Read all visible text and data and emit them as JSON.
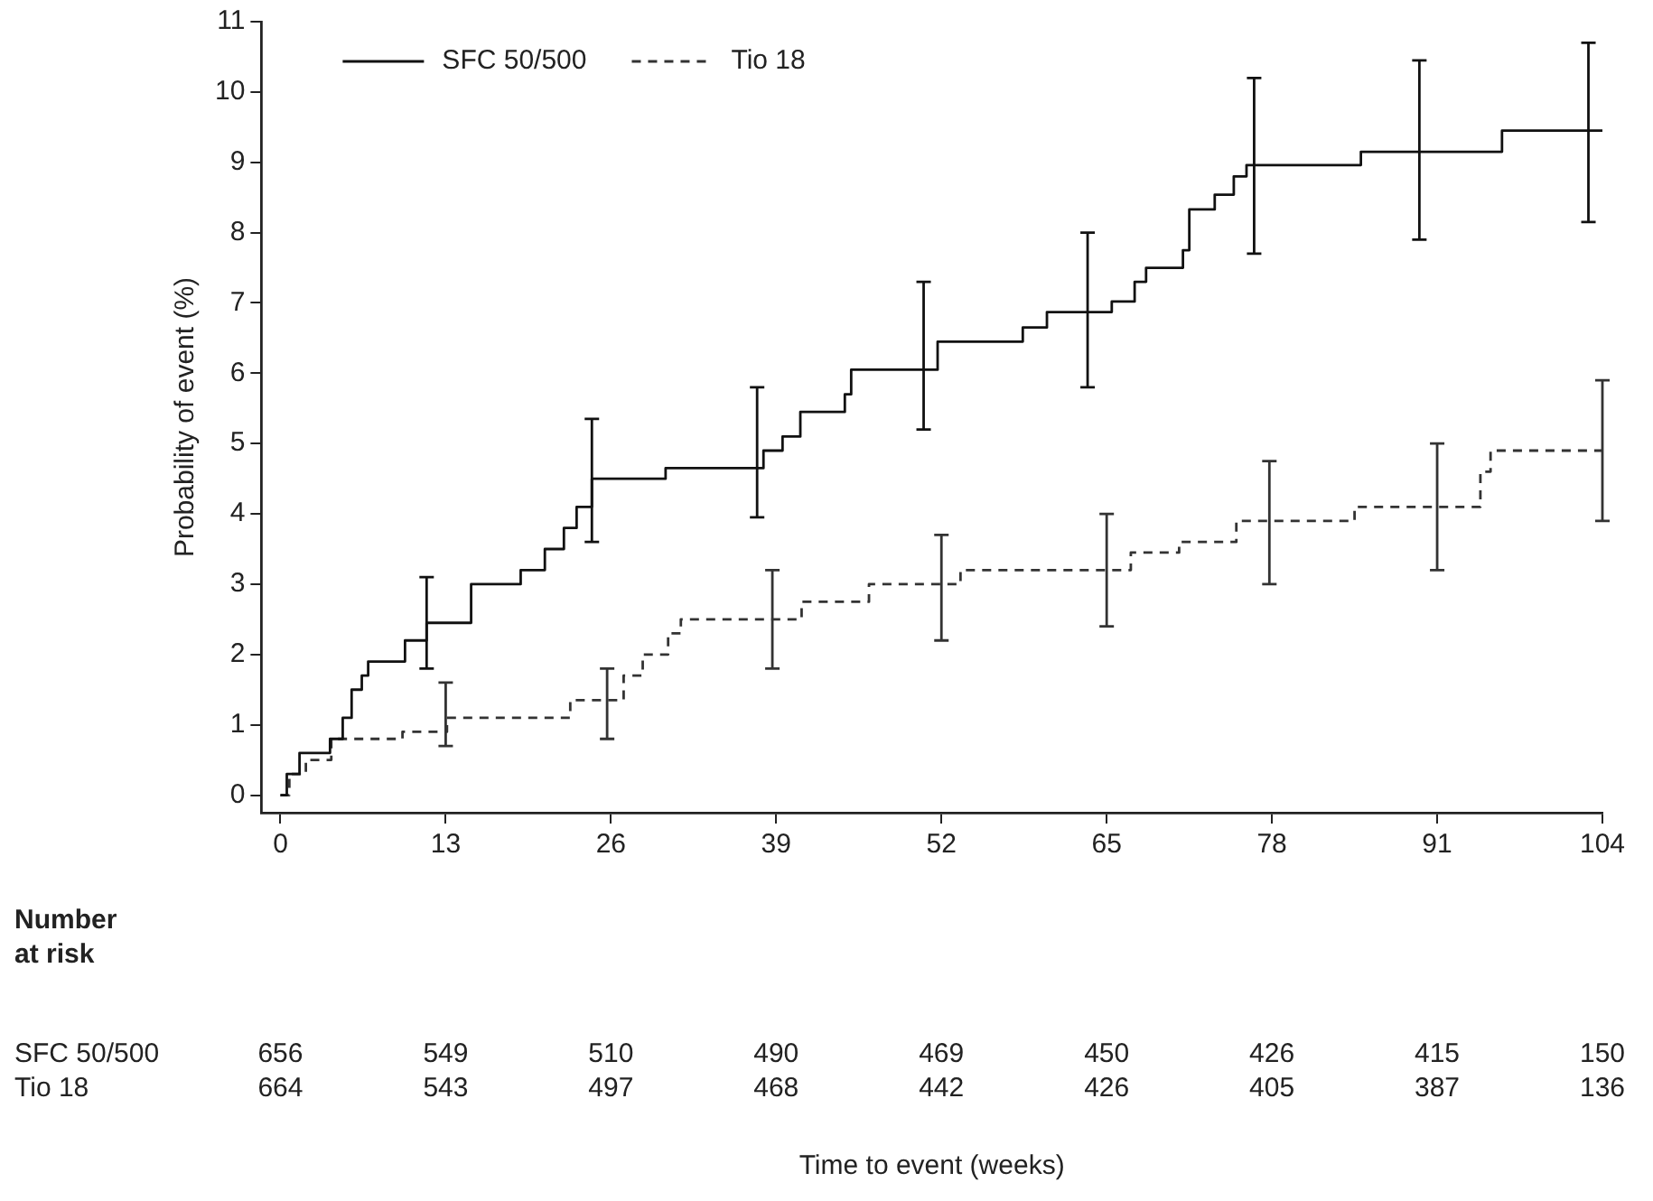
{
  "chart_data": {
    "type": "step",
    "ylabel": "Probability of event (%)",
    "xlim": [
      -1.5,
      104
    ],
    "xticks": [
      0,
      13,
      26,
      39,
      52,
      65,
      78,
      91,
      104
    ],
    "ylim": [
      -0.25,
      11
    ],
    "yticks": [
      0,
      1,
      2,
      3,
      4,
      5,
      6,
      7,
      8,
      9,
      10,
      11
    ],
    "grid": false,
    "legend": "top left",
    "marker": "none",
    "series": [
      {
        "name": "SFC 50/500",
        "color": "#111111",
        "line_style": "solid",
        "x": [
          0,
          0.5,
          1.5,
          3.9,
          4.9,
          5.6,
          6.4,
          6.9,
          9.8,
          11.5,
          15,
          18.9,
          20.8,
          22.3,
          23.3,
          24.5,
          30.3,
          37.5,
          38,
          39.5,
          40.9,
          44.4,
          44.9,
          50.6,
          51.7,
          58.4,
          60.3,
          63.5,
          65.4,
          67.2,
          68.1,
          71,
          71.5,
          73.5,
          75,
          76,
          76.6,
          85,
          89.6,
          96.1,
          102.9,
          104
        ],
        "values": [
          0,
          0.3,
          0.6,
          0.8,
          1.1,
          1.5,
          1.7,
          1.9,
          2.2,
          2.45,
          3.0,
          3.2,
          3.5,
          3.8,
          4.1,
          4.5,
          4.65,
          4.65,
          4.9,
          5.1,
          5.45,
          5.7,
          6.05,
          6.05,
          6.45,
          6.65,
          6.87,
          6.87,
          7.02,
          7.3,
          7.5,
          7.75,
          8.33,
          8.54,
          8.8,
          8.96,
          8.96,
          9.15,
          9.15,
          9.45,
          9.45,
          9.45
        ],
        "errors": [
          null,
          null,
          null,
          null,
          null,
          null,
          null,
          null,
          null,
          [
            1.8,
            3.1
          ],
          null,
          null,
          null,
          null,
          null,
          [
            3.6,
            5.35
          ],
          null,
          [
            3.95,
            5.8
          ],
          null,
          null,
          null,
          null,
          null,
          [
            5.2,
            7.3
          ],
          null,
          null,
          null,
          [
            5.8,
            8.0
          ],
          null,
          null,
          null,
          null,
          null,
          null,
          null,
          null,
          [
            7.7,
            10.2
          ],
          null,
          [
            7.9,
            10.45
          ],
          null,
          [
            8.15,
            10.7
          ],
          null
        ]
      },
      {
        "name": "Tio 18",
        "color": "#333333",
        "line_style": "dashed",
        "x": [
          0,
          0.7,
          2,
          4,
          9.6,
          13,
          13.1,
          22.8,
          25.7,
          27,
          28.5,
          30.5,
          31.5,
          38.7,
          41,
          46.3,
          52,
          53.5,
          65,
          66.9,
          70.7,
          75.2,
          77.8,
          84.5,
          91,
          94.4,
          95.2,
          104
        ],
        "values": [
          0,
          0.3,
          0.5,
          0.8,
          0.9,
          0.9,
          1.1,
          1.35,
          1.35,
          1.7,
          2.0,
          2.3,
          2.5,
          2.5,
          2.75,
          3.0,
          3.0,
          3.2,
          3.2,
          3.45,
          3.6,
          3.9,
          3.9,
          4.1,
          4.1,
          4.6,
          4.9,
          4.9
        ],
        "errors": [
          null,
          null,
          null,
          null,
          null,
          [
            0.7,
            1.6
          ],
          null,
          null,
          [
            0.8,
            1.8
          ],
          null,
          null,
          null,
          null,
          [
            1.8,
            3.2
          ],
          null,
          null,
          [
            2.2,
            3.7
          ],
          null,
          [
            2.4,
            4.0
          ],
          null,
          null,
          null,
          [
            3.0,
            4.75
          ],
          null,
          [
            3.2,
            5.0
          ],
          null,
          null,
          [
            3.9,
            5.9
          ]
        ]
      }
    ],
    "annotations": [
      "Number at risk",
      "SFC 50/500",
      "656",
      "549",
      "510",
      "490",
      "469",
      "450",
      "426",
      "415",
      "150",
      "Tio 18",
      "664",
      "543",
      "497",
      "468",
      "442",
      "426",
      "405",
      "387",
      "136",
      "Time to event (weeks)"
    ]
  }
}
